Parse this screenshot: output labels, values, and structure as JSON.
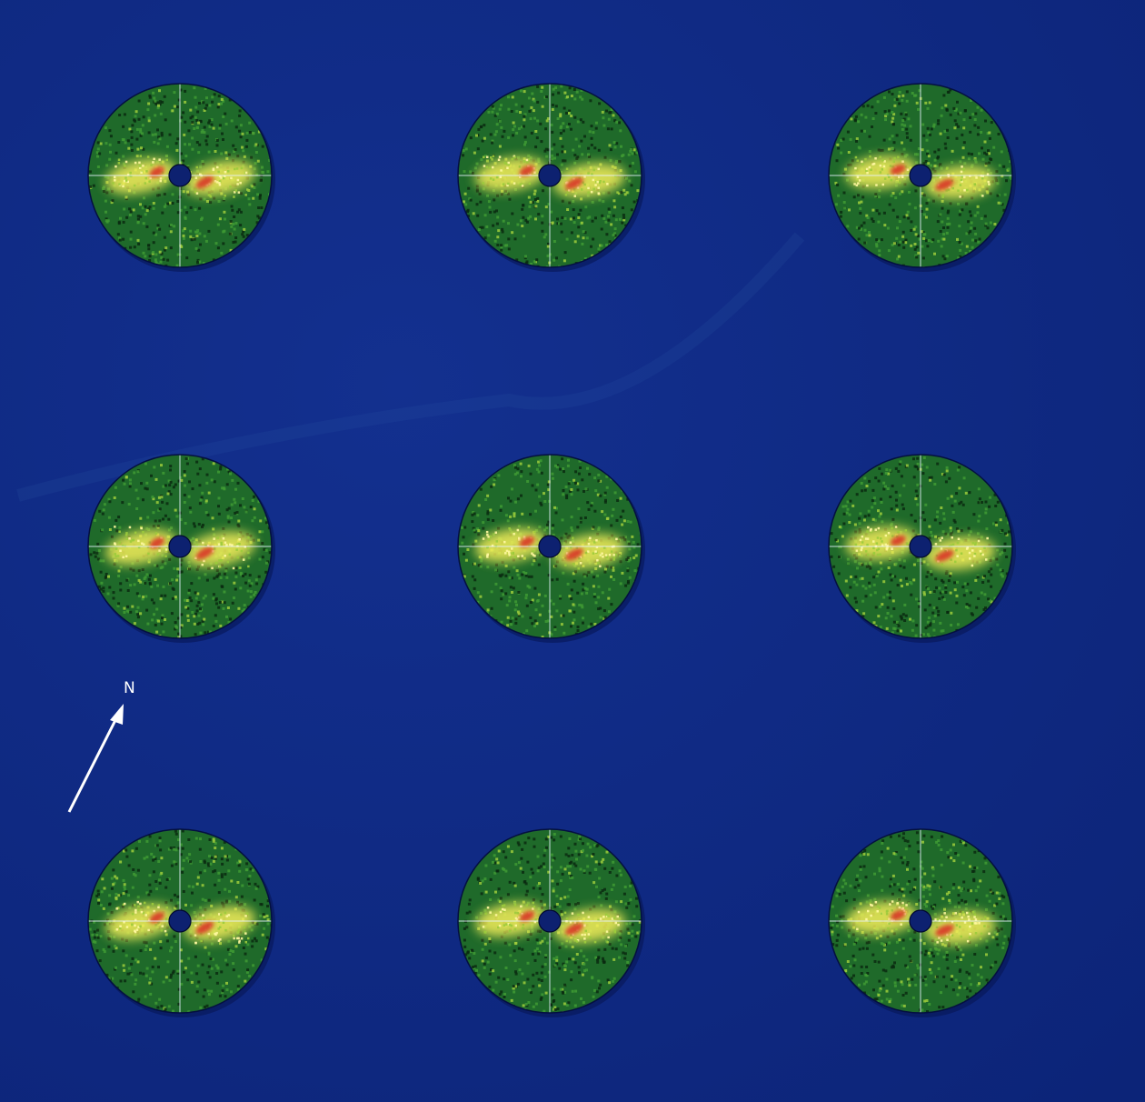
{
  "figure": {
    "background_color": "#0f2a86",
    "grid": {
      "rows": 3,
      "cols": 3
    },
    "compass": {
      "label": "N",
      "icon": "north-arrow-icon",
      "color": "#ffffff"
    },
    "palette": {
      "disk_base": "#1f6a2a",
      "speckle_dark": "#0a2a10",
      "speckle_mid": "#3f9a34",
      "speckle_light": "#9ccb3c",
      "glow": "#f5ef5a",
      "core": "#d8452a",
      "crosshair": "#e8f1ff",
      "central_hole": "#0d2170"
    }
  }
}
